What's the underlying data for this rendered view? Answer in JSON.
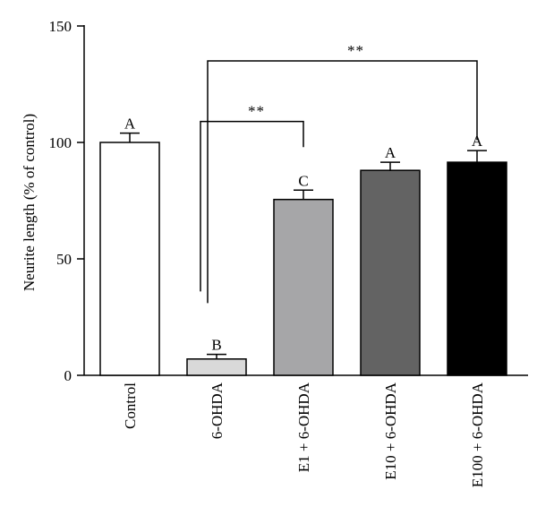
{
  "chart_data": {
    "type": "bar",
    "ylabel": "Neurite length (% of control)",
    "xlabel": "",
    "ylim": [
      0,
      150
    ],
    "yticks": [
      0,
      50,
      100,
      150
    ],
    "grid": false,
    "categories": [
      "Control",
      "6-OHDA",
      "E1 + 6-OHDA",
      "E10 + 6-OHDA",
      "E100 + 6-OHDA"
    ],
    "values": [
      100,
      7,
      75.5,
      88,
      91.5
    ],
    "errors": [
      4,
      2,
      4,
      3.5,
      5
    ],
    "letters": [
      "A",
      "B",
      "C",
      "A",
      "A"
    ],
    "bar_colors": [
      "#ffffff",
      "#d9d9d9",
      "#a6a6a8",
      "#636363",
      "#000000"
    ],
    "significance": [
      {
        "from": "6-OHDA",
        "to": "E1 + 6-OHDA",
        "label": "**",
        "level": 109
      },
      {
        "from": "6-OHDA",
        "to": "E100 + 6-OHDA",
        "label": "**",
        "level": 135
      }
    ]
  }
}
